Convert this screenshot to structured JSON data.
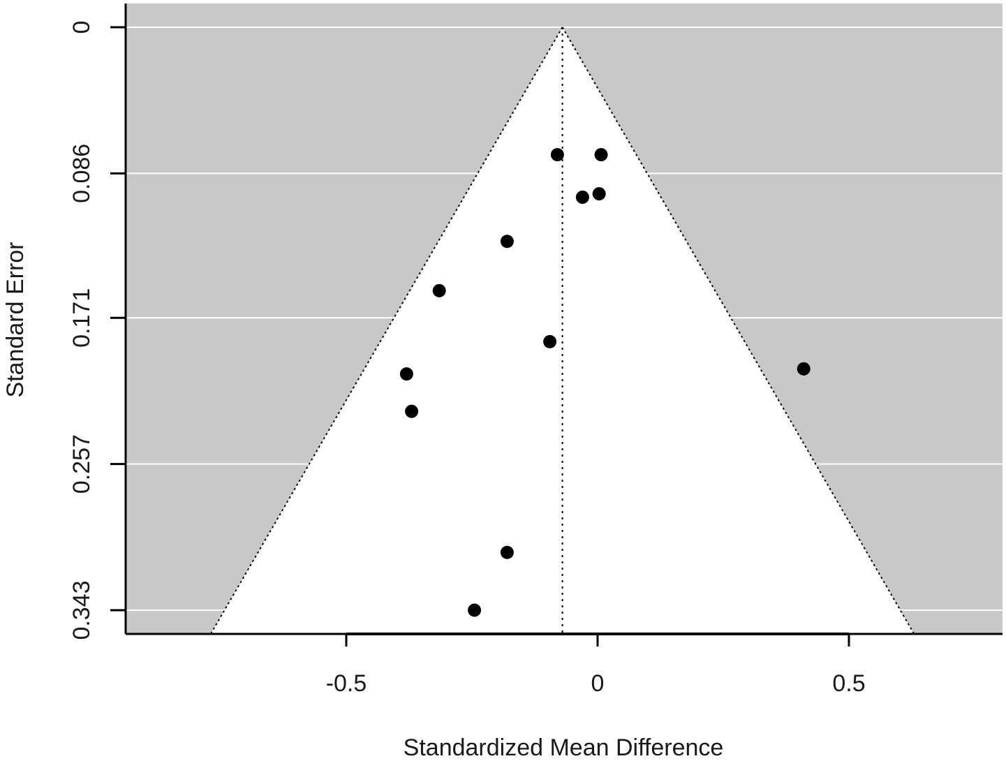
{
  "chart_data": {
    "type": "scatter",
    "subtype": "funnel",
    "xlabel": "Standardized Mean Difference",
    "ylabel": "Standard Error",
    "x_ticks": [
      "-0.5",
      "0",
      "0.5"
    ],
    "x_tick_values": [
      -0.5,
      0,
      0.5
    ],
    "y_ticks": [
      "0",
      "0.086",
      "0.171",
      "0.257",
      "0.343"
    ],
    "y_tick_values": [
      0,
      0.086,
      0.171,
      0.257,
      0.343
    ],
    "xlim": [
      -0.94,
      0.8
    ],
    "ylim": [
      0,
      0.357
    ],
    "y_reversed": true,
    "pooled_estimate": -0.07,
    "funnel_z": 1.96,
    "grid": true,
    "colors": {
      "background_region": "#c8c8c8",
      "funnel_region": "#ffffff",
      "gridline": "#ffffff",
      "points": "#000000",
      "axis": "#000000"
    },
    "points": [
      {
        "x": -0.08,
        "y": 0.075
      },
      {
        "x": 0.007,
        "y": 0.075
      },
      {
        "x": -0.03,
        "y": 0.1
      },
      {
        "x": 0.003,
        "y": 0.098
      },
      {
        "x": -0.18,
        "y": 0.126
      },
      {
        "x": -0.315,
        "y": 0.155
      },
      {
        "x": -0.095,
        "y": 0.185
      },
      {
        "x": 0.41,
        "y": 0.201
      },
      {
        "x": -0.38,
        "y": 0.204
      },
      {
        "x": -0.37,
        "y": 0.226
      },
      {
        "x": -0.18,
        "y": 0.309
      },
      {
        "x": -0.245,
        "y": 0.343
      }
    ]
  }
}
